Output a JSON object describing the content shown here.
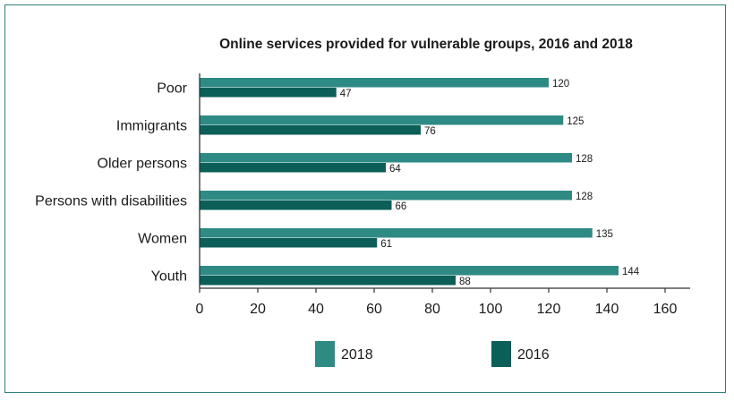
{
  "chart_data": {
    "type": "bar",
    "orientation": "horizontal",
    "title": "Online services provided for vulnerable groups, 2016 and 2018",
    "categories": [
      "Poor",
      "Immigrants",
      "Older persons",
      "Persons with disabilities",
      "Women",
      "Youth"
    ],
    "series": [
      {
        "name": "2018",
        "color": "#2e8a84",
        "values": [
          120,
          125,
          128,
          128,
          135,
          144
        ]
      },
      {
        "name": "2016",
        "color": "#0c5f58",
        "values": [
          47,
          76,
          64,
          66,
          61,
          88
        ]
      }
    ],
    "xlim": [
      0,
      160
    ],
    "xticks": [
      0,
      20,
      40,
      60,
      80,
      100,
      120,
      140,
      160
    ],
    "xlabel": "",
    "ylabel": "",
    "grid": false,
    "legend": "bottom"
  }
}
